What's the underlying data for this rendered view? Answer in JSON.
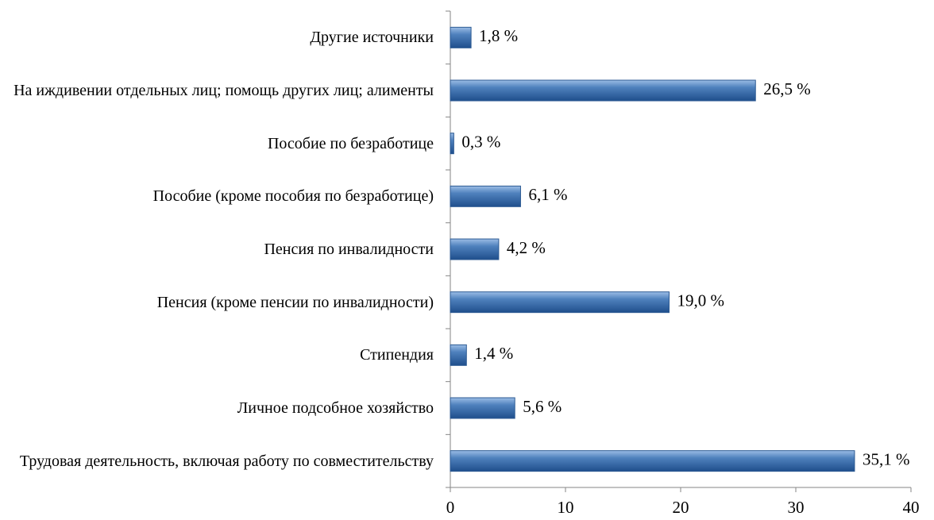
{
  "chart_data": {
    "type": "bar",
    "orientation": "horizontal",
    "categories": [
      "Другие источники",
      "На иждивении отдельных лиц; помощь других лиц; алименты",
      "Пособие по безработице",
      "Пособие (кроме пособия по безработице)",
      "Пенсия по инвалидности",
      "Пенсия (кроме пенсии по инвалидности)",
      "Стипендия",
      "Личное подсобное хозяйство",
      "Трудовая деятельность, включая работу по совместительству"
    ],
    "values": [
      1.8,
      26.5,
      0.3,
      6.1,
      4.2,
      19.0,
      1.4,
      5.6,
      35.1
    ],
    "value_labels": [
      "1,8 %",
      "26,5 %",
      "0,3 %",
      "6,1 %",
      "4,2 %",
      "19,0 %",
      "1,4 %",
      "5,6 %",
      "35,1 %"
    ],
    "color": "#4f81bd",
    "xlim": [
      0,
      40
    ],
    "xticks": [
      0,
      10,
      20,
      30,
      40
    ],
    "grid": false
  }
}
